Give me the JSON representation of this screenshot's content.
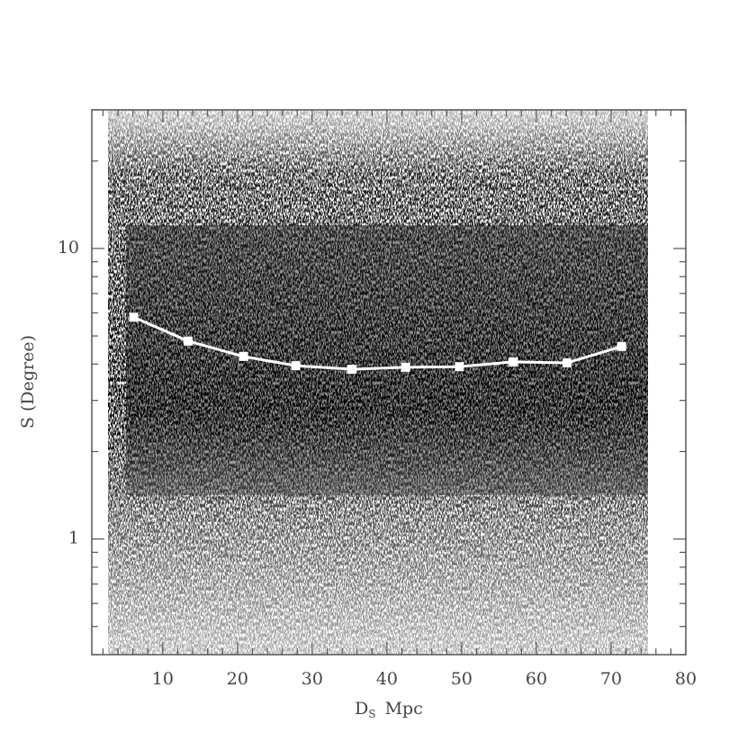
{
  "chart_data": {
    "type": "line",
    "y_label": "S (Degree)",
    "x_label": {
      "main": "D",
      "sub": "S",
      "unit": "Mpc"
    },
    "log_y": true,
    "xlim": [
      0.5,
      80
    ],
    "ylim": [
      0.4,
      30
    ],
    "xticks": [
      10,
      20,
      30,
      40,
      50,
      60,
      70,
      80
    ],
    "xticks_minor": [
      2,
      4,
      6,
      8,
      12,
      14,
      16,
      18,
      22,
      24,
      26,
      28,
      32,
      34,
      36,
      38,
      42,
      44,
      46,
      48,
      52,
      54,
      56,
      58,
      62,
      64,
      66,
      68,
      72,
      74,
      76,
      78
    ],
    "yticks": [
      1,
      10
    ],
    "yticks_minor": [
      0.4,
      0.5,
      0.6,
      0.7,
      0.8,
      0.9,
      2,
      3,
      4,
      5,
      6,
      7,
      8,
      9,
      20,
      30
    ],
    "series": [
      {
        "color": "#ffffff",
        "x": [
          6.1,
          13.4,
          20.8,
          27.8,
          35.3,
          42.5,
          49.7,
          56.9,
          64.1,
          71.4
        ],
        "values": [
          5.8,
          4.8,
          4.25,
          3.95,
          3.84,
          3.9,
          3.92,
          4.07,
          4.04,
          4.6
        ]
      }
    ]
  }
}
